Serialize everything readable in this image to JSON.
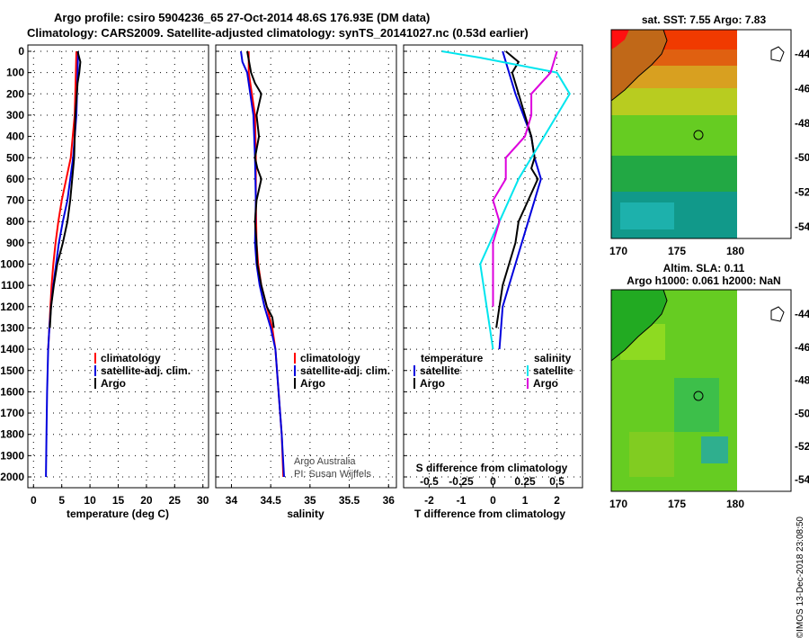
{
  "header": {
    "title1": "Argo profile: csiro 5904236_65 27-Oct-2014 48.6S 176.93E (DM data)",
    "title2": "Climatology: CARS2009. Satellite-adjusted climatology: synTS_20141027.nc (0.53d earlier)"
  },
  "depth_ticks": [
    "0",
    "100",
    "200",
    "300",
    "400",
    "500",
    "600",
    "700",
    "800",
    "900",
    "1000",
    "1100",
    "1200",
    "1300",
    "1400",
    "1500",
    "1600",
    "1700",
    "1800",
    "1900",
    "2000"
  ],
  "colors": {
    "climatology": "#ff0000",
    "satellite": "#0000dd",
    "argo": "#000000",
    "sat_salinity": "#00e5ee",
    "argo_salinity": "#dd00dd"
  },
  "chart_data": [
    {
      "type": "line",
      "id": "temperature",
      "xlabel": "temperature (deg C)",
      "xlim": [
        -1,
        31
      ],
      "xticks": [
        "0",
        "5",
        "10",
        "15",
        "20",
        "25",
        "30"
      ],
      "ylim": [
        0,
        2050
      ],
      "legend": {
        "climatology": "climatology",
        "satellite": "satellite-adj. clim.",
        "argo": "Argo"
      },
      "series": [
        {
          "name": "climatology",
          "color": "#ff0000",
          "depth": [
            0,
            100,
            300,
            500,
            700,
            800,
            900,
            1000,
            1100,
            1200,
            1300,
            1400
          ],
          "values": [
            7.6,
            7.5,
            7.3,
            6.6,
            5.0,
            4.4,
            3.9,
            3.5,
            3.2,
            3.0,
            2.8,
            2.6
          ]
        },
        {
          "name": "satellite-adj. clim.",
          "color": "#0000dd",
          "depth": [
            0,
            100,
            300,
            500,
            700,
            800,
            900,
            1000,
            1100,
            1200,
            1300,
            1400,
            1600,
            1800,
            2000
          ],
          "values": [
            7.9,
            7.8,
            7.6,
            7.0,
            6.0,
            5.2,
            4.5,
            4.0,
            3.5,
            3.1,
            2.8,
            2.6,
            2.4,
            2.3,
            2.2
          ]
        },
        {
          "name": "Argo",
          "color": "#000000",
          "depth": [
            0,
            50,
            100,
            150,
            300,
            500,
            700,
            800,
            900,
            1000,
            1100,
            1200,
            1300
          ],
          "values": [
            7.8,
            8.3,
            8.1,
            7.8,
            7.4,
            7.2,
            6.5,
            6.0,
            5.2,
            4.2,
            3.6,
            3.1,
            2.9
          ]
        }
      ]
    },
    {
      "type": "line",
      "id": "salinity",
      "xlabel": "salinity",
      "xlim": [
        33.8,
        36.1
      ],
      "xticks": [
        "34",
        "34.5",
        "35",
        "35.5",
        "36"
      ],
      "ylim": [
        0,
        2050
      ],
      "legend": {
        "climatology": "climatology",
        "satellite": "satellite-adj. clim.",
        "argo": "Argo"
      },
      "credit1": "Argo Australia",
      "credit2": "PI: Susan Wijffels",
      "series": [
        {
          "name": "climatology",
          "color": "#ff0000",
          "depth": [
            0,
            100,
            300,
            500,
            700,
            900,
            1000,
            1100,
            1200,
            1300,
            1400,
            1600,
            1800,
            2000
          ],
          "values": [
            34.22,
            34.22,
            34.3,
            34.31,
            34.31,
            34.32,
            34.34,
            34.38,
            34.45,
            34.52,
            34.56,
            34.6,
            34.64,
            34.66
          ]
        },
        {
          "name": "satellite-adj. clim.",
          "color": "#0000dd",
          "depth": [
            0,
            50,
            100,
            300,
            500,
            700,
            900,
            1000,
            1100,
            1200,
            1300,
            1400,
            1600,
            1800,
            2000
          ],
          "values": [
            34.12,
            34.14,
            34.2,
            34.28,
            34.3,
            34.31,
            34.3,
            34.32,
            34.36,
            34.42,
            34.5,
            34.56,
            34.6,
            34.64,
            34.67
          ]
        },
        {
          "name": "Argo",
          "color": "#000000",
          "depth": [
            0,
            100,
            150,
            200,
            300,
            400,
            500,
            550,
            600,
            700,
            800,
            900,
            1000,
            1100,
            1200,
            1250,
            1300
          ],
          "values": [
            34.2,
            34.25,
            34.3,
            34.38,
            34.32,
            34.35,
            34.3,
            34.33,
            34.38,
            34.32,
            34.3,
            34.32,
            34.33,
            34.38,
            34.45,
            34.52,
            34.54
          ]
        }
      ]
    },
    {
      "type": "line",
      "id": "difference",
      "xlabel": "T difference from climatology",
      "xlabel_top": "S difference from climatology",
      "xlim": [
        -2.8,
        2.8
      ],
      "xticks": [
        "-2",
        "-1",
        "0",
        "1",
        "2"
      ],
      "xticks_s": [
        "-0.5",
        "-0.25",
        "0",
        "0.25",
        "0.5"
      ],
      "ylim": [
        0,
        2050
      ],
      "legend": {
        "temperature": "temperature",
        "salinity": "salinity",
        "satellite": "satellite",
        "argo": "Argo",
        "sat_s": "satellite",
        "argo_s": "Argo"
      },
      "series": [
        {
          "name": "satellite T",
          "color": "#0000dd",
          "depth": [
            0,
            100,
            200,
            400,
            500,
            600,
            700,
            800,
            1000,
            1200,
            1400
          ],
          "values": [
            0.3,
            0.5,
            0.7,
            1.2,
            1.3,
            1.5,
            1.3,
            1.1,
            0.7,
            0.3,
            0.2
          ]
        },
        {
          "name": "Argo T",
          "color": "#000000",
          "depth": [
            0,
            50,
            100,
            200,
            300,
            400,
            500,
            550,
            600,
            700,
            800,
            900,
            1000,
            1100,
            1200,
            1300
          ],
          "values": [
            0.4,
            0.8,
            0.6,
            0.8,
            1.0,
            1.2,
            1.3,
            1.2,
            1.4,
            1.1,
            0.8,
            0.7,
            0.5,
            0.3,
            0.2,
            0.1
          ]
        },
        {
          "name": "satellite S",
          "color": "#00e5ee",
          "depth": [
            0,
            30,
            100,
            200,
            400,
            600,
            800,
            1000,
            1200,
            1400
          ],
          "values": [
            -0.4,
            -0.1,
            0.5,
            0.6,
            0.4,
            0.2,
            0.05,
            -0.1,
            -0.05,
            0.0
          ]
        },
        {
          "name": "Argo S",
          "color": "#dd00dd",
          "depth": [
            0,
            100,
            200,
            300,
            400,
            500,
            600,
            700,
            800,
            900,
            1000,
            1200
          ],
          "values": [
            0.5,
            0.45,
            0.3,
            0.3,
            0.25,
            0.1,
            0.1,
            0.0,
            0.05,
            0.0,
            0.0,
            0.0
          ]
        }
      ]
    }
  ],
  "maps": {
    "top": {
      "title": "sat. SST: 7.55 Argo: 7.83",
      "lat_ticks": [
        "-44",
        "-46",
        "-48",
        "-50",
        "-52",
        "-54"
      ],
      "lon_ticks": [
        "170",
        "175",
        "180"
      ]
    },
    "bottom": {
      "title1": "Altim. SLA: 0.11",
      "title2": "Argo h1000: 0.061 h2000: NaN",
      "lat_ticks": [
        "-44",
        "-46",
        "-48",
        "-50",
        "-52",
        "-54"
      ],
      "lon_ticks": [
        "170",
        "175",
        "180"
      ]
    }
  },
  "watermark": "©IMOS 13-Dec-2018 23:08:50"
}
